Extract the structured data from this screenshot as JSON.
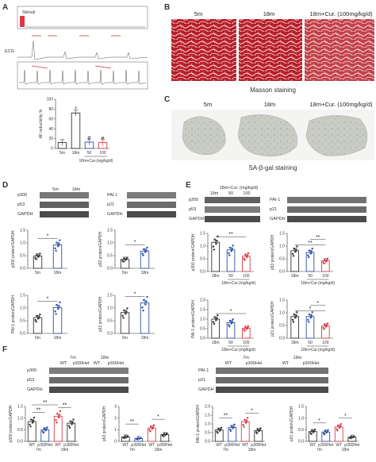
{
  "panel_letters": [
    "A",
    "B",
    "C",
    "D",
    "E",
    "F"
  ],
  "panel_a": {
    "trace_labels": [
      "Stimuli",
      "ECG"
    ],
    "bar_chart": {
      "type": "bar",
      "ylabel": "AF inducibility %",
      "ylim": [
        0,
        100
      ],
      "yticks": [
        "0",
        "20",
        "40",
        "60",
        "80",
        "100"
      ],
      "categories": [
        "5m",
        "18m",
        "50",
        "100"
      ],
      "values": [
        12,
        72,
        13,
        12
      ],
      "group_label": "18m+Cur.(mg/kg/d)",
      "markers": [
        "",
        "*",
        "#",
        "#"
      ],
      "colors": [
        "#333333",
        "#333333",
        "#2e4fa3",
        "#d83a45"
      ]
    }
  },
  "panel_b": {
    "headers": [
      "5m",
      "18m",
      "18m+Cur. (100mg/kg/d)"
    ],
    "caption": "Masson staining"
  },
  "panel_c": {
    "headers": [
      "5m",
      "18m",
      "18m+Cur. (100mg/kg/d)"
    ],
    "caption": "SA-β-gal staining"
  },
  "panel_d": {
    "blot_left": {
      "headers": [
        "5m",
        "18m"
      ],
      "rows": [
        "p300",
        "p53",
        "GAPDH"
      ]
    },
    "blot_right": {
      "rows": [
        "PAI-1",
        "p21",
        "GAPDH"
      ]
    },
    "charts": [
      {
        "ylabel": "p300 protein/GAPDH",
        "yticks": [
          "0.0",
          "0.5",
          "1.0",
          "1.5"
        ],
        "ylim": [
          0,
          1.5
        ],
        "categories": [
          "5m",
          "18m"
        ],
        "values": [
          0.48,
          0.92
        ],
        "sig": "*"
      },
      {
        "ylabel": "p53 protein/GAPDH",
        "yticks": [
          "0.0",
          "0.5",
          "1.0",
          "1.5"
        ],
        "ylim": [
          0,
          1.5
        ],
        "categories": [
          "5m",
          "18m"
        ],
        "values": [
          0.35,
          0.68
        ],
        "sig": "*"
      },
      {
        "ylabel": "PAI-1 protein/GAPDH",
        "yticks": [
          "0.0",
          "0.5",
          "1.0",
          "1.5"
        ],
        "ylim": [
          0,
          1.5
        ],
        "categories": [
          "5m",
          "18m"
        ],
        "values": [
          0.62,
          1.02
        ],
        "sig": "*"
      },
      {
        "ylabel": "p21 protein/GAPDH",
        "yticks": [
          "0.0",
          "0.5",
          "1.0",
          "1.5"
        ],
        "ylim": [
          0,
          1.5
        ],
        "categories": [
          "5m",
          "18m"
        ],
        "values": [
          0.82,
          1.2
        ],
        "sig": "*"
      }
    ]
  },
  "panel_e": {
    "blot_header_group": "18m+Cur. (mg/kg/d)",
    "blot_headers": [
      "18m",
      "50",
      "100"
    ],
    "blot_left_rows": [
      "p300",
      "p53",
      "GAPDH"
    ],
    "blot_right_rows": [
      "PAI-1",
      "p21",
      "GAPDH"
    ],
    "group_label": "18m+Cur.(mg/kg/d)",
    "charts": [
      {
        "ylabel": "p300 protein/GAPDH",
        "yticks": [
          "0.0",
          "0.5",
          "1.0",
          "1.5"
        ],
        "ylim": [
          0,
          1.5
        ],
        "categories": [
          "18m",
          "50",
          "100"
        ],
        "values": [
          1.15,
          0.85,
          0.6
        ],
        "sig": [
          "**"
        ]
      },
      {
        "ylabel": "p53 protein/GAPDH",
        "yticks": [
          "0.0",
          "0.5",
          "1.0",
          "1.5"
        ],
        "ylim": [
          0,
          1.5
        ],
        "categories": [
          "18m",
          "50",
          "100"
        ],
        "values": [
          0.82,
          0.75,
          0.42
        ],
        "sig": [
          "**",
          "**"
        ]
      },
      {
        "ylabel": "PAI-1 protein/GAPDH",
        "yticks": [
          "0.0",
          "0.5",
          "1.0",
          "1.5",
          "2.0"
        ],
        "ylim": [
          0,
          2.0
        ],
        "categories": [
          "18m",
          "50",
          "100"
        ],
        "values": [
          1.0,
          0.82,
          0.52
        ],
        "sig": [
          "*"
        ]
      },
      {
        "ylabel": "p21 protein/GAPDH",
        "yticks": [
          "0.0",
          "0.5",
          "1.0",
          "1.5"
        ],
        "ylim": [
          0,
          1.5
        ],
        "categories": [
          "18m",
          "50",
          "100"
        ],
        "values": [
          0.85,
          0.85,
          0.48
        ],
        "sig": [
          "*",
          "*"
        ]
      }
    ]
  },
  "panel_f": {
    "blot_headers": [
      "7m",
      "18m"
    ],
    "blot_sub": [
      "WT",
      "p300Het",
      "WT",
      "p300Het"
    ],
    "blot_left_rows": [
      "p300",
      "p53",
      "GAPDH"
    ],
    "blot_right_rows": [
      "PAI-1",
      "p21",
      "GAPDH"
    ],
    "charts": [
      {
        "ylabel": "p300 protein/GAPDH",
        "yticks": [
          "0.0",
          "0.5",
          "1.0",
          "1.5"
        ],
        "ylim": [
          0,
          1.5
        ],
        "categories": [
          "WT",
          "p300Het",
          "WT",
          "p300Het"
        ],
        "groups": [
          "7m",
          "18m"
        ],
        "values": [
          0.85,
          0.5,
          1.08,
          0.78
        ],
        "sig": [
          "**",
          "**",
          "**"
        ]
      },
      {
        "ylabel": "p53 protein/GAPDH",
        "yticks": [
          "0",
          "1",
          "2",
          "3"
        ],
        "ylim": [
          0,
          3
        ],
        "categories": [
          "WT",
          "p300Het",
          "WT",
          "p300Het"
        ],
        "groups": [
          "7m",
          "18m"
        ],
        "values": [
          0.38,
          0.25,
          1.15,
          0.58
        ],
        "sig": [
          "**",
          "*"
        ]
      },
      {
        "ylabel": "PAI-1 protein/GAPDH",
        "yticks": [
          "0.0",
          "0.5",
          "1.0",
          "1.5",
          "2.0"
        ],
        "ylim": [
          0,
          2.0
        ],
        "categories": [
          "WT",
          "p300Het",
          "WT",
          "p300Het"
        ],
        "groups": [
          "7m",
          "18m"
        ],
        "values": [
          0.65,
          0.8,
          1.12,
          0.62
        ],
        "sig": [
          "**",
          "*"
        ]
      },
      {
        "ylabel": "p21 protein/GAPDH",
        "yticks": [
          "0.0",
          "0.5",
          "1.0",
          "1.5"
        ],
        "ylim": [
          0,
          1.5
        ],
        "categories": [
          "WT",
          "p300Het",
          "WT",
          "p300Het"
        ],
        "groups": [
          "7m",
          "18m"
        ],
        "values": [
          0.42,
          0.4,
          0.62,
          0.18
        ],
        "sig": [
          "*",
          "*"
        ]
      }
    ]
  }
}
